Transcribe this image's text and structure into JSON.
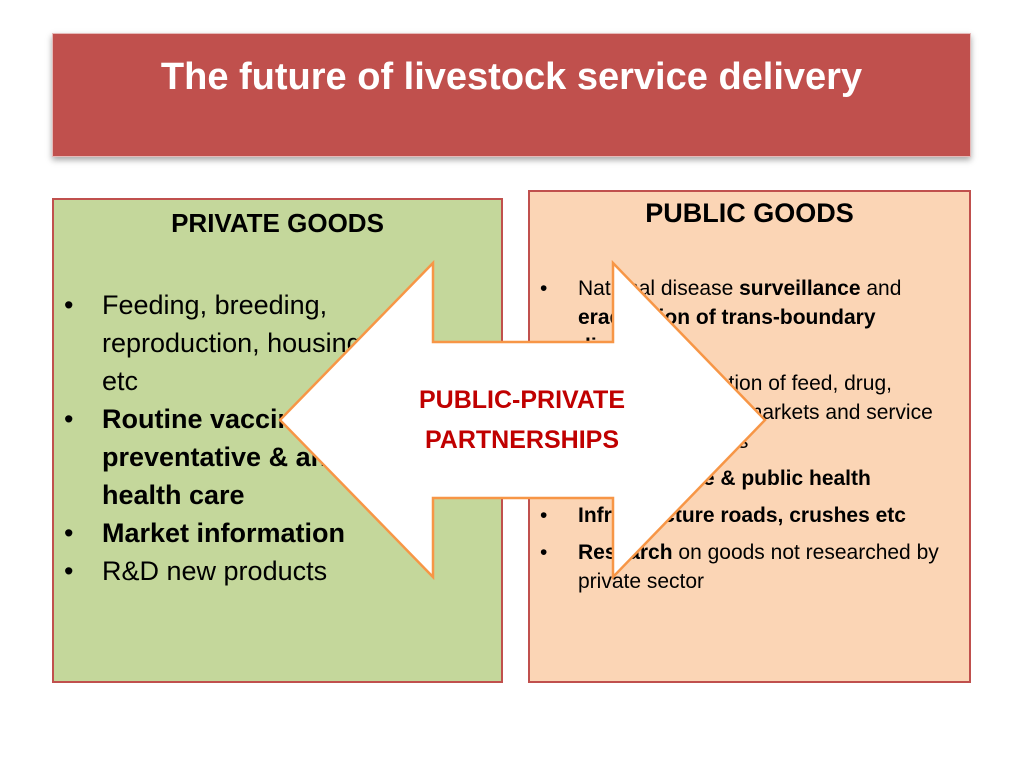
{
  "title": "The future of livestock service delivery",
  "private": {
    "heading": "PRIVATE GOODS",
    "items": [
      {
        "runs": [
          {
            "t": "Feeding, breeding, reproduction, housing etc",
            "b": false
          }
        ]
      },
      {
        "runs": [
          {
            "t": "Routine vaccination, preventative & animal health care",
            "b": true
          }
        ]
      },
      {
        "runs": [
          {
            "t": "Market information",
            "b": true
          }
        ]
      },
      {
        "runs": [
          {
            "t": "R&D new products",
            "b": false
          }
        ]
      }
    ]
  },
  "public": {
    "heading": "PUBLIC GOODS",
    "items": [
      {
        "runs": [
          {
            "t": "National disease ",
            "b": false
          },
          {
            "t": "surveillance",
            "b": true
          },
          {
            "t": " and ",
            "b": false
          },
          {
            "t": "eradication of trans-boundary diseases",
            "b": true
          }
        ]
      },
      {
        "runs": [
          {
            "t": "Regulation of feed, drug, vaccine, markets and service providers",
            "b": false
          }
        ]
      },
      {
        "runs": [
          {
            "t": "Food hygiene & public health",
            "b": true
          }
        ]
      },
      {
        "runs": [
          {
            "t": "Infrastructure roads, crushes etc",
            "b": true
          }
        ]
      },
      {
        "runs": [
          {
            "t": "Research",
            "b": true
          },
          {
            "t": " on goods not researched by private sector",
            "b": false
          }
        ]
      }
    ]
  },
  "center": {
    "line1": "PUBLIC-PRIVATE",
    "line2": "PARTNERSHIPS"
  },
  "colors": {
    "title_bg": "#c0504d",
    "private_bg": "#c4d79b",
    "public_bg": "#fbd5b5",
    "arrow_border": "#f79646",
    "center_text": "#c00000"
  }
}
